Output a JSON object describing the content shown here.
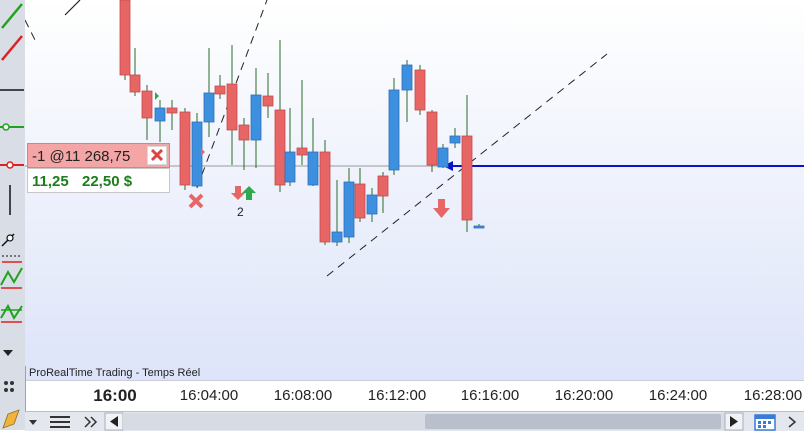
{
  "chart": {
    "watermark": "ProRealTime Trading - Temps Réel",
    "time_labels": [
      "16:00",
      "16:04:00",
      "16:08:00",
      "16:12:00",
      "16:16:00",
      "16:20:00",
      "16:24:00",
      "16:28:00"
    ],
    "marker_count": "2",
    "colors": {
      "bull": "#3d8fe0",
      "bear": "#e86565",
      "position_line": "#0b13c8",
      "order_line": "#9a9a9a"
    }
  },
  "order": {
    "label": "-1 @11 268,75",
    "pnl_points": "11,25",
    "pnl_money": "22,50 $"
  },
  "toolbar": {
    "icons": [
      "line-icon",
      "red-line-icon",
      "horizontal-line-icon",
      "green-segment-icon",
      "red-segment-icon",
      "vertical-line-icon",
      "ray-icon",
      "channel-icon",
      "fibonacci-icon",
      "zigzag-icon",
      "dropdown-arrow-icon"
    ]
  }
}
